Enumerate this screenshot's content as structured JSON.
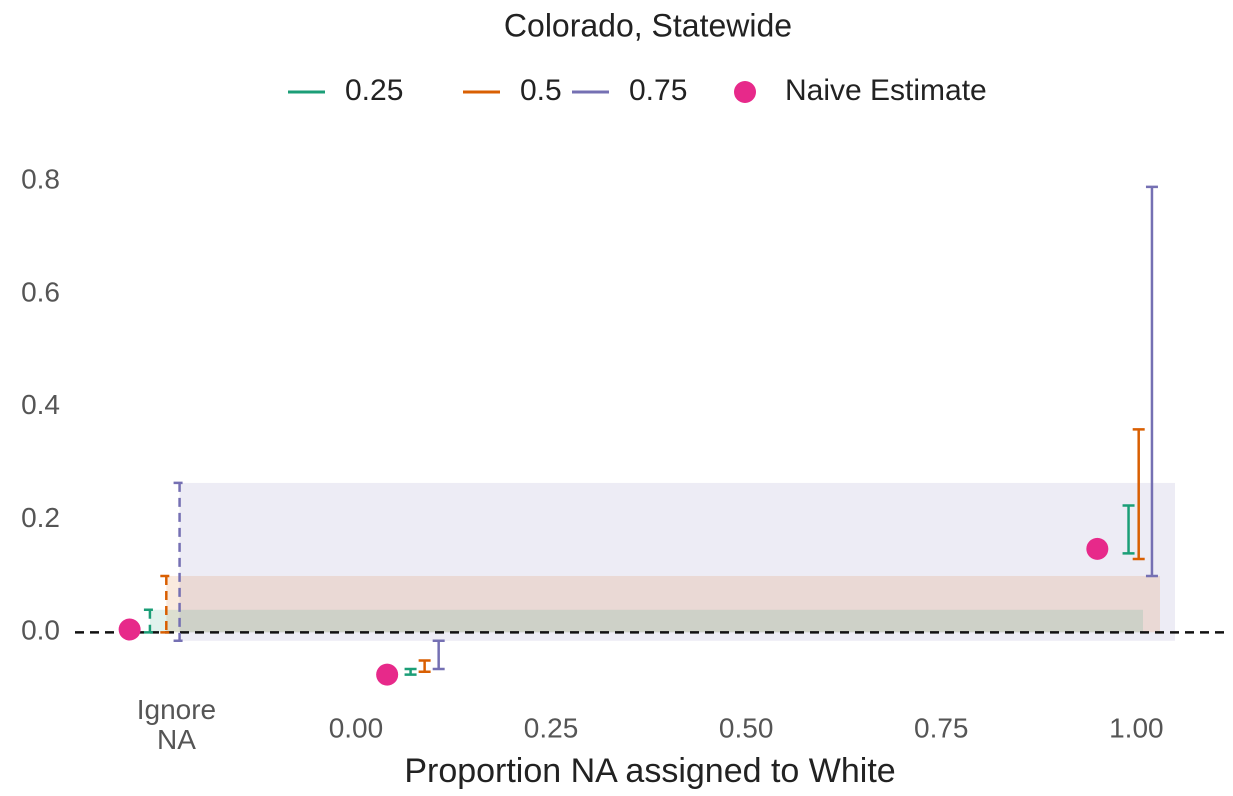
{
  "chart_data": {
    "type": "errorbar",
    "title": "Colorado, Statewide",
    "xlabel": "Proportion NA assigned to White",
    "xlim": [
      -0.36,
      1.12
    ],
    "ylim": [
      -0.12,
      0.82
    ],
    "xticks": [
      {
        "value": -0.23,
        "label": "Ignore NA"
      },
      {
        "value": 0,
        "label": "0.00"
      },
      {
        "value": 0.25,
        "label": "0.25"
      },
      {
        "value": 0.5,
        "label": "0.50"
      },
      {
        "value": 0.75,
        "label": "0.75"
      },
      {
        "value": 1,
        "label": "1.00"
      }
    ],
    "yticks": [
      {
        "value": 0,
        "label": "0.0"
      },
      0.2,
      0.4,
      0.6,
      0.8
    ],
    "hline": 0,
    "series": [
      {
        "name": "0.25",
        "color": "#1b9e77",
        "x": [
          -0.264,
          0.07,
          0.99
        ],
        "low": [
          0,
          -0.075,
          0.14
        ],
        "high": [
          0.04,
          -0.065,
          0.225
        ]
      },
      {
        "name": "0.5",
        "color": "#d95f02",
        "x": [
          -0.243,
          0.088,
          1.003
        ],
        "low": [
          0,
          -0.07,
          0.13
        ],
        "high": [
          0.1,
          -0.05,
          0.36
        ]
      },
      {
        "name": "0.75",
        "color": "#7570b3",
        "x": [
          -0.226,
          0.106,
          1.02
        ],
        "low": [
          -0.015,
          -0.065,
          0.1
        ],
        "high": [
          0.265,
          -0.015,
          0.79
        ]
      }
    ],
    "points": {
      "name": "Naive Estimate",
      "color": "#e7298a",
      "x": [
        -0.29,
        0.04,
        0.95
      ],
      "values": [
        0.005,
        -0.075,
        0.148
      ]
    }
  }
}
